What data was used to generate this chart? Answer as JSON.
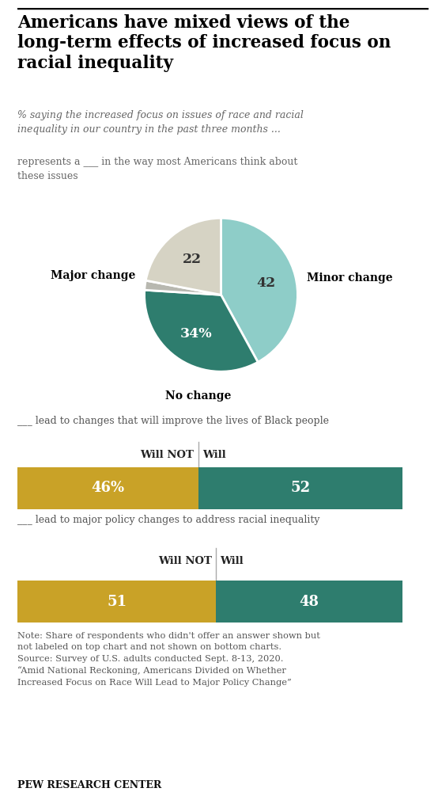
{
  "title": "Americans have mixed views of the\nlong-term effects of increased focus on\nracial inequality",
  "subtitle": "% saying the increased focus on issues of race and racial\ninequality in our country in the past three months ...",
  "pie_label": "represents a ___ in the way most Americans think about\nthese issues",
  "pie_values": [
    42,
    34,
    2,
    22
  ],
  "pie_colors": [
    "#8ecdc8",
    "#2e7d6e",
    "#b8b8b0",
    "#d6d3c4"
  ],
  "pie_text_values": [
    "42",
    "34%",
    "",
    "22"
  ],
  "pie_text_colors": [
    "#333333",
    "#ffffff",
    "",
    "#333333"
  ],
  "pie_label_minor": "Minor change",
  "pie_label_major": "Major change",
  "pie_label_no": "No change",
  "bar1_label": "___ lead to changes that will improve the lives of Black people",
  "bar1_will_not": 46,
  "bar1_will": 52,
  "bar1_label_will_not": "46%",
  "bar1_label_will": "52",
  "bar2_label": "___ lead to major policy changes to address racial inequality",
  "bar2_will_not": 51,
  "bar2_will": 48,
  "bar2_label_will_not": "51",
  "bar2_label_will": "48",
  "color_will_not": "#c9a227",
  "color_will": "#2e7d6e",
  "note_line1": "Note: Share of respondents who didn't offer an answer shown but",
  "note_line2": "not labeled on top chart and not shown on bottom charts.",
  "note_line3": "Source: Survey of U.S. adults conducted Sept. 8-13, 2020.",
  "note_line4": "“Amid National Reckoning, Americans Divided on Whether",
  "note_line5": "Increased Focus on Race Will Lead to Major Policy Change”",
  "footer": "PEW RESEARCH CENTER",
  "background_color": "#ffffff"
}
